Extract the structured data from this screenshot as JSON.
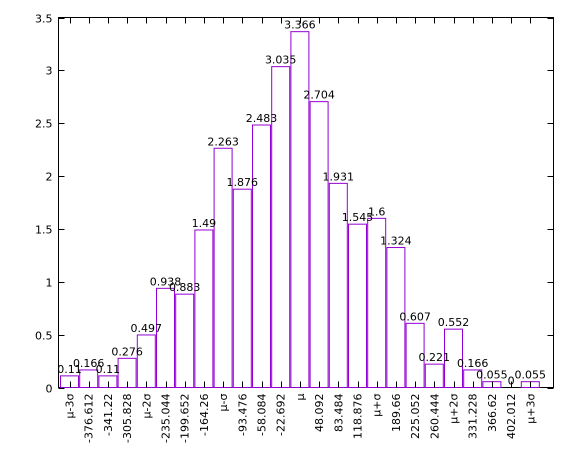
{
  "chart_data": {
    "type": "bar",
    "categories": [
      "μ-3σ",
      "-376.612",
      "-341.22",
      "-305.828",
      "μ-2σ",
      "-235.044",
      "-199.652",
      "-164.26",
      "μ-σ",
      "-93.476",
      "-58.084",
      "-22.692",
      "μ",
      "48.092",
      "83.484",
      "118.876",
      "μ+σ",
      "189.66",
      "225.052",
      "260.444",
      "μ+2σ",
      "331.228",
      "366.62",
      "402.012",
      "μ+3σ"
    ],
    "values": [
      0.11,
      0.166,
      0.11,
      0.276,
      0.497,
      0.938,
      0.883,
      1.49,
      2.263,
      1.876,
      2.483,
      3.035,
      3.366,
      2.704,
      1.931,
      1.545,
      1.6,
      1.324,
      0.607,
      0.221,
      0.552,
      0.166,
      0.055,
      0,
      0.055
    ],
    "value_labels": [
      "0.11",
      "0.166",
      "0.11",
      "0.276",
      "0.497",
      "0.938",
      "0.883",
      "1.49",
      "2.263",
      "1.876",
      "2.483",
      "3.035",
      "3.366",
      "2.704",
      "1.931",
      "1.545",
      "1.6",
      "1.324",
      "0.607",
      "0.221",
      "0.552",
      "0.166",
      "0.055",
      "0",
      "0.055"
    ],
    "y_ticks": [
      "0",
      "0.5",
      "1",
      "1.5",
      "2",
      "2.5",
      "3",
      "3.5"
    ],
    "ylim": [
      0,
      3.5
    ],
    "title": "",
    "xlabel": "",
    "ylabel": "",
    "grid": false,
    "legend": "none",
    "bar_color": "#9400d3"
  }
}
